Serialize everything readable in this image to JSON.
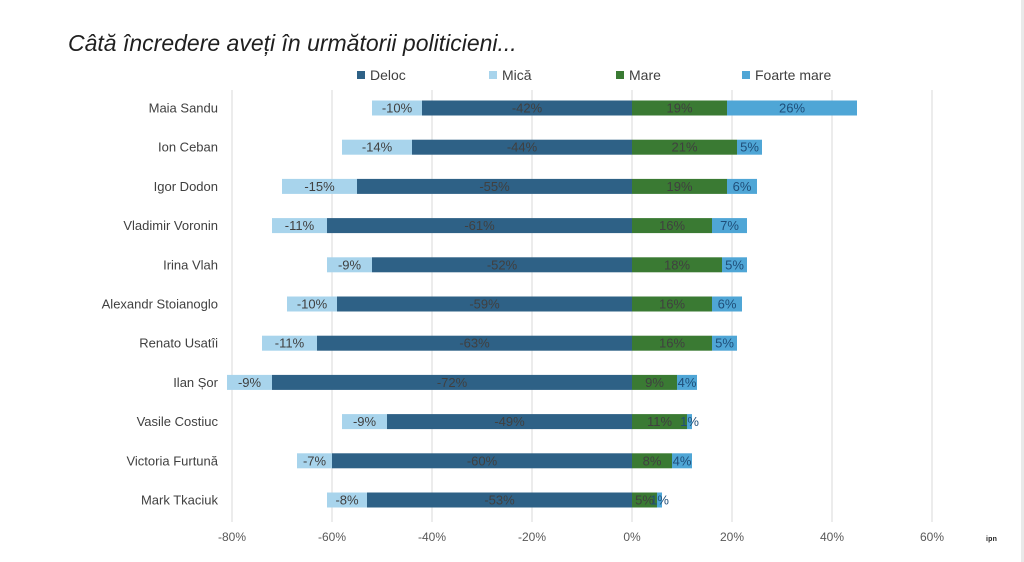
{
  "page": {
    "title": "Câtă încredere aveți în următorii politicieni...",
    "logo_text": "ipn"
  },
  "colors": {
    "deloc": "#2e6186",
    "mica": "#a8d4ec",
    "mare": "#3a7a33",
    "foarte_mare": "#4fa6d6",
    "grid": "#d9d9d9",
    "label": "#404040",
    "axis_text": "#595959"
  },
  "chart_data": {
    "type": "bar",
    "orientation": "horizontal-diverging-stacked",
    "title": "Câtă încredere aveți în următorii politicieni...",
    "categories": [
      "Maia Sandu",
      "Ion Ceban",
      "Igor Dodon",
      "Vladimir Voronin",
      "Irina Vlah",
      "Alexandr Stoianoglo",
      "Renato Usatîi",
      "Ilan Șor",
      "Vasile Costiuc",
      "Victoria Furtună",
      "Mark Tkaciuk"
    ],
    "series": [
      {
        "name": "Deloc",
        "values": [
          -42,
          -44,
          -55,
          -61,
          -52,
          -59,
          -63,
          -72,
          -49,
          -60,
          -53
        ],
        "labels": [
          "-42%",
          "-44%",
          "-55%",
          "-61%",
          "-52%",
          "-59%",
          "-63%",
          "-72%",
          "-49%",
          "-60%",
          "-53%"
        ]
      },
      {
        "name": "Mică",
        "values": [
          -10,
          -14,
          -15,
          -11,
          -9,
          -10,
          -11,
          -9,
          -9,
          -7,
          -8
        ],
        "labels": [
          "-10%",
          "-14%",
          "-15%",
          "-11%",
          "-9%",
          "-10%",
          "-11%",
          "-9%",
          "-9%",
          "-7%",
          "-8%"
        ]
      },
      {
        "name": "Mare",
        "values": [
          19,
          21,
          19,
          16,
          18,
          16,
          16,
          9,
          11,
          8,
          5
        ],
        "labels": [
          "19%",
          "21%",
          "19%",
          "16%",
          "18%",
          "16%",
          "16%",
          "9%",
          "11%",
          "8%",
          "5%"
        ]
      },
      {
        "name": "Foarte mare",
        "values": [
          26,
          5,
          6,
          7,
          5,
          6,
          5,
          4,
          1,
          4,
          1
        ],
        "labels": [
          "26%",
          "5%",
          "6%",
          "7%",
          "5%",
          "6%",
          "5%",
          "4%",
          "1%",
          "4%",
          "1%"
        ]
      }
    ],
    "xlim": [
      -80,
      60
    ],
    "x_ticks": [
      {
        "value": -80,
        "label": "-80%"
      },
      {
        "value": -60,
        "label": "-60%"
      },
      {
        "value": -40,
        "label": "-40%"
      },
      {
        "value": -20,
        "label": "-20%"
      },
      {
        "value": 0,
        "label": "0%"
      },
      {
        "value": 20,
        "label": "20%"
      },
      {
        "value": 40,
        "label": "40%"
      },
      {
        "value": 60,
        "label": "60%"
      }
    ],
    "grid": true,
    "legend_position": "top"
  }
}
